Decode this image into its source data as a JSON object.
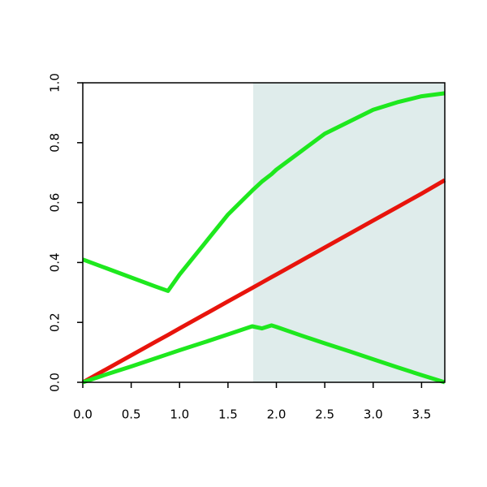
{
  "chart_data": {
    "type": "line",
    "x": [
      0,
      0.25,
      0.5,
      0.75,
      0.88,
      1.0,
      1.25,
      1.5,
      1.75,
      1.85,
      1.95,
      2.0,
      2.25,
      2.5,
      2.75,
      3.0,
      3.25,
      3.5,
      3.74
    ],
    "series": [
      {
        "color": "#e8140c",
        "values": [
          0,
          0.045,
          0.09,
          0.135,
          0.158,
          0.18,
          0.225,
          0.27,
          0.315,
          0.333,
          0.351,
          0.36,
          0.405,
          0.45,
          0.495,
          0.54,
          0.585,
          0.63,
          0.675
        ]
      },
      {
        "color": "#1ee81e",
        "values": [
          0.41,
          0.38,
          0.35,
          0.32,
          0.305,
          0.36,
          0.46,
          0.56,
          0.64,
          0.67,
          0.695,
          0.71,
          0.77,
          0.83,
          0.87,
          0.91,
          0.935,
          0.955,
          0.965
        ]
      },
      {
        "color": "#1ee81e",
        "values": [
          0,
          0.027,
          0.053,
          0.08,
          0.094,
          0.107,
          0.133,
          0.16,
          0.187,
          0.18,
          0.19,
          0.185,
          0.157,
          0.13,
          0.104,
          0.077,
          0.05,
          0.024,
          0
        ]
      }
    ],
    "xlim": [
      0,
      3.74
    ],
    "ylim": [
      0,
      1
    ],
    "xticks": [
      {
        "value": 0,
        "label": "0.0"
      },
      {
        "value": 0.5,
        "label": "0.5"
      },
      {
        "value": 1,
        "label": "1.0"
      },
      {
        "value": 1.5,
        "label": "1.5"
      },
      {
        "value": 2,
        "label": "2.0"
      },
      {
        "value": 2.5,
        "label": "2.5"
      },
      {
        "value": 3,
        "label": "3.0"
      },
      {
        "value": 3.5,
        "label": "3.5"
      }
    ],
    "yticks": [
      {
        "value": 0,
        "label": "0.0"
      },
      {
        "value": 0.2,
        "label": "0.2"
      },
      {
        "value": 0.4,
        "label": "0.4"
      },
      {
        "value": 0.6,
        "label": "0.6"
      },
      {
        "value": 0.8,
        "label": "0.8"
      },
      {
        "value": 1,
        "label": "1.0"
      }
    ],
    "shaded_region": [
      1.76,
      3.74
    ],
    "shade_color": "#dfeceb"
  }
}
